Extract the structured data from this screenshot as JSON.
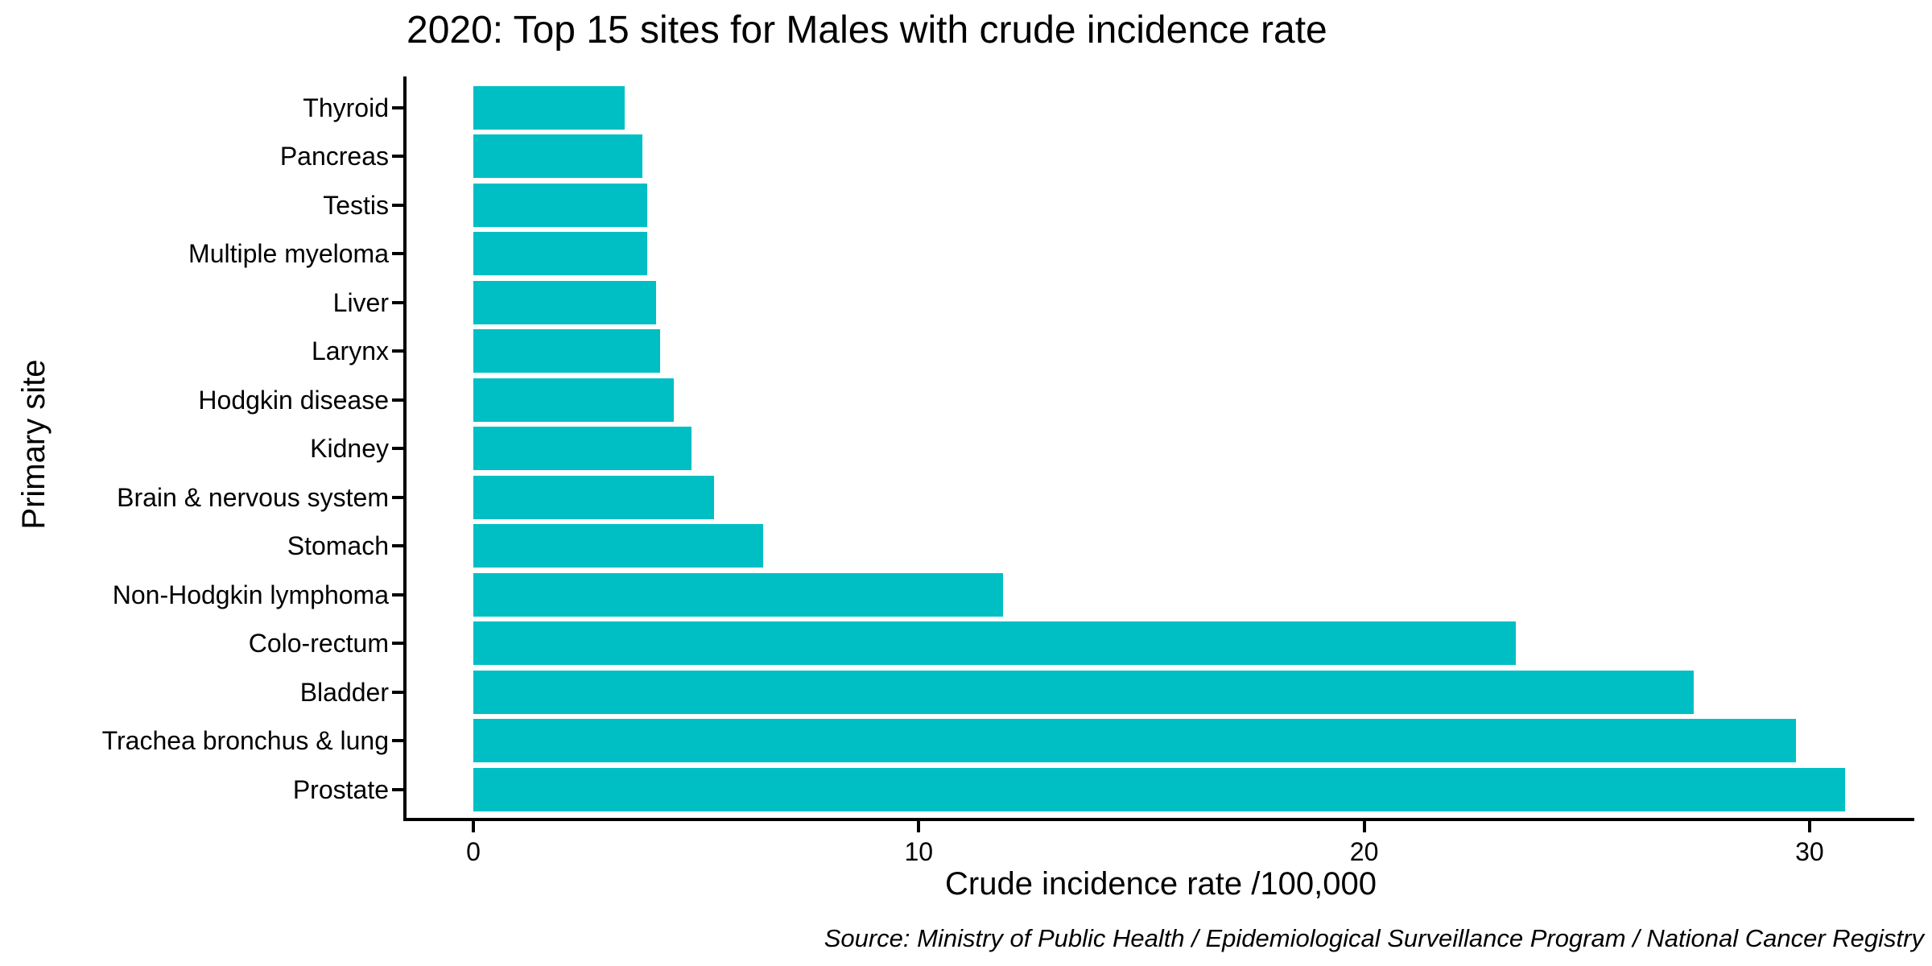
{
  "title": "2020: Top 15 sites for Males with crude incidence rate",
  "source_note": "Source: Ministry of Public Health / Epidemiological Surveillance Program / National Cancer Registry",
  "chart_data": {
    "type": "bar",
    "orientation": "horizontal",
    "title": "2020: Top 15 sites for Males with crude incidence rate",
    "xlabel": "Crude incidence rate /100,000",
    "ylabel": "Primary site",
    "categories_top_to_bottom": [
      "Thyroid",
      "Pancreas",
      "Testis",
      "Multiple myeloma",
      "Liver",
      "Larynx",
      "Hodgkin disease",
      "Kidney",
      "Brain & nervous system",
      "Stomach",
      "Non-Hodgkin lymphoma",
      "Colo-rectum",
      "Bladder",
      "Trachea bronchus & lung",
      "Prostate"
    ],
    "values": [
      3.4,
      3.8,
      3.9,
      3.9,
      4.1,
      4.2,
      4.5,
      4.9,
      5.4,
      6.5,
      11.9,
      23.4,
      27.4,
      29.7,
      30.8
    ],
    "x_ticks": [
      0,
      10,
      20,
      30
    ],
    "xlim": [
      0,
      32.4
    ],
    "grid": false,
    "legend": false,
    "bar_color": "#00BFC4",
    "axis_color": "#000000",
    "text_color": "#000000"
  }
}
